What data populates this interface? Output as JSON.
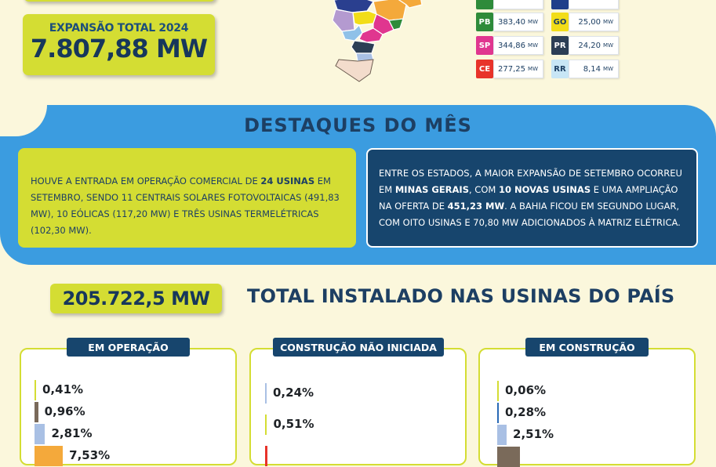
{
  "expansion": {
    "label": "EXPANSÃO TOTAL 2024",
    "value": "7.807,88 MW"
  },
  "states": {
    "left": [
      {
        "code": "PB",
        "value": "383,40",
        "unit": "MW",
        "color": "#2e8b3a"
      },
      {
        "code": "SP",
        "value": "344,86",
        "unit": "MW",
        "color": "#e0368f"
      },
      {
        "code": "CE",
        "value": "277,25",
        "unit": "MW",
        "color": "#e8332a"
      }
    ],
    "right": [
      {
        "code": "GO",
        "value": "25,00",
        "unit": "MW",
        "color": "#f2dd18"
      },
      {
        "code": "PR",
        "value": "24,20",
        "unit": "MW",
        "color": "#2c3e55"
      },
      {
        "code": "RR",
        "value": "8,14",
        "unit": "MW",
        "color": "#c8e6f5"
      }
    ],
    "top_colors": {
      "left": "#2e8b3a",
      "right": "#1f3f8a"
    }
  },
  "destaques": {
    "title": "DESTAQUES DO MÊS",
    "left": {
      "t1": "HOUVE A ENTRADA EM OPERAÇÃO COMERCIAL DE ",
      "b1": "24 USINAS",
      "t2": " EM SETEMBRO, SENDO 11 CENTRAIS SOLARES FOTOVOLTAICAS (491,83 MW), 10 EÓLICAS (117,20 MW) E TRÊS USINAS TERMELÉTRICAS (102,30 MW)."
    },
    "right": {
      "t1": "ENTRE OS ESTADOS, A MAIOR EXPANSÃO DE SETEMBRO OCORREU EM ",
      "b1": "MINAS GERAIS",
      "t2": ", COM ",
      "b2": "10 NOVAS USINAS",
      "t3": " E UMA AMPLIAÇÃO NA OFERTA DE ",
      "b3": "451,23 MW",
      "t4": ". A BAHIA FICOU EM SEGUNDO LUGAR, COM OITO USINAS E 70,80 MW ADICIONADOS À MATRIZ ELÉTRICA."
    }
  },
  "total": {
    "value": "205.722,5 MW",
    "title": "TOTAL INSTALADO NAS USINAS DO PAÍS"
  },
  "panels": {
    "operacao": {
      "title": "EM OPERAÇÃO",
      "bars": [
        {
          "label": "0,41%",
          "percent": 0.41,
          "color": "#d4dd33"
        },
        {
          "label": "0,96%",
          "percent": 0.96,
          "color": "#7a6a5a"
        },
        {
          "label": "2,81%",
          "percent": 2.81,
          "color": "#a9c0e4"
        },
        {
          "label": "7,53%",
          "percent": 7.53,
          "color": "#f4a93b"
        }
      ]
    },
    "nao_iniciada": {
      "title": "CONSTRUÇÃO NÃO INICIADA",
      "bars": [
        {
          "label": "0,24%",
          "percent": 0.24,
          "color": "#a9c0e4"
        },
        {
          "label": "0,51%",
          "percent": 0.51,
          "color": "#d4dd33"
        },
        {
          "label": "",
          "percent": 0.6,
          "color": "#e8332a"
        }
      ]
    },
    "construcao": {
      "title": "EM CONSTRUÇÃO",
      "bars": [
        {
          "label": "0,06%",
          "percent": 0.06,
          "color": "#d4dd33"
        },
        {
          "label": "0,28%",
          "percent": 0.28,
          "color": "#2a6ab5"
        },
        {
          "label": "2,51%",
          "percent": 2.51,
          "color": "#a9c0e4"
        },
        {
          "label": "",
          "percent": 6.0,
          "color": "#7a6a5a"
        }
      ]
    }
  }
}
